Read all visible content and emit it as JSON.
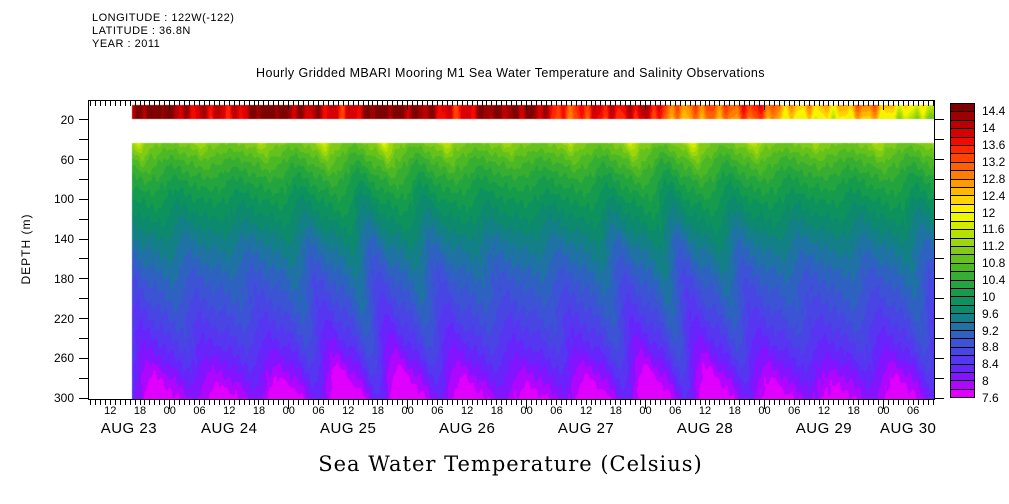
{
  "meta": {
    "longitude": "LONGITUDE : 122W(-122)",
    "latitude": "LATITUDE : 36.8N",
    "year": "YEAR : 2011"
  },
  "title": "Hourly Gridded MBARI Mooring M1 Sea Water Temperature and Salinity Observations",
  "bottom_label": "Sea Water Temperature (Celsius)",
  "y_axis": {
    "label": "DEPTH (m)",
    "labeled_ticks": [
      20,
      60,
      100,
      140,
      180,
      220,
      260,
      300
    ],
    "minor_step_m": 20,
    "range_m": [
      0,
      300
    ]
  },
  "x_axis": {
    "hour_labels": [
      "12",
      "18",
      "00",
      "06",
      "12",
      "18",
      "00",
      "06",
      "12",
      "18",
      "00",
      "06",
      "12",
      "18",
      "00",
      "06",
      "12",
      "18",
      "00",
      "06",
      "12",
      "18",
      "00",
      "06",
      "12",
      "18",
      "00",
      "06"
    ],
    "date_labels": [
      "AUG 23",
      "AUG 24",
      "AUG 25",
      "AUG 26",
      "AUG 27",
      "AUG 28",
      "AUG 29",
      "AUG 30"
    ],
    "label_step_hours": 6,
    "first_label_hour": 12,
    "axis_start_hour": 7.5,
    "axis_end_hour": 178
  },
  "colorbar": {
    "labels": [
      "14.4",
      "14",
      "13.6",
      "13.2",
      "12.8",
      "12.4",
      "12",
      "11.6",
      "11.2",
      "10.8",
      "10.4",
      "10",
      "9.6",
      "9.2",
      "8.8",
      "8.4",
      "8",
      "7.6"
    ],
    "value_max": 14.6,
    "value_min": 7.6,
    "segment_step": 0.2,
    "segment_colors": [
      "#7E0000",
      "#9C0000",
      "#BA0000",
      "#D80000",
      "#F20A00",
      "#FF2600",
      "#FF4300",
      "#FF6000",
      "#FF7D00",
      "#FF9A00",
      "#FFB700",
      "#FFD400",
      "#FFF100",
      "#EDF700",
      "#D2EC00",
      "#B7E104",
      "#9CD70C",
      "#80CC14",
      "#65C21C",
      "#4CB826",
      "#37AE31",
      "#24A43E",
      "#169B4D",
      "#0E925D",
      "#0D896E",
      "#137F86",
      "#1F73A4",
      "#2E62C0",
      "#3C53D5",
      "#4944E4",
      "#5636F1",
      "#6724FB",
      "#8413FF",
      "#AF06FF",
      "#E000FF"
    ]
  },
  "chart_data": {
    "type": "heatmap",
    "title": "Hourly Gridded MBARI Mooring M1 Sea Water Temperature and Salinity Observations",
    "x": "Time, hourly, Aug 23 2011 ~07:30 to Aug 30 2011 ~10:00 UTC",
    "y": "Depth (m), 0 at surface to 300 at bottom",
    "z": "Sea water temperature (Celsius), quantized in 0.2 C filled-contour steps",
    "zlim": [
      7.6,
      14.6
    ],
    "data_start_hour": 16,
    "surface_band_depth_range_m": [
      4,
      18
    ],
    "data_gap_depth_range_m": [
      18,
      42
    ],
    "mean_profile": {
      "depths_m": [
        42,
        60,
        80,
        100,
        120,
        140,
        160,
        180,
        200,
        220,
        240,
        260,
        280,
        300
      ],
      "temps_c": [
        11.05,
        10.62,
        10.25,
        9.95,
        9.7,
        9.45,
        9.25,
        9.05,
        8.9,
        8.73,
        8.55,
        8.33,
        8.07,
        7.83
      ]
    },
    "surface_layer": {
      "start_temp_c": 14.25,
      "end_temp_c": 12.3,
      "diurnal_amplitude_c": 0.4
    },
    "internal_wave": {
      "semidiurnal_period_hours": 12.42,
      "amplitude_c_at_42m": 0.13,
      "amplitude_c_at_300m": 0.33,
      "modulation_period_hours": 61
    }
  }
}
